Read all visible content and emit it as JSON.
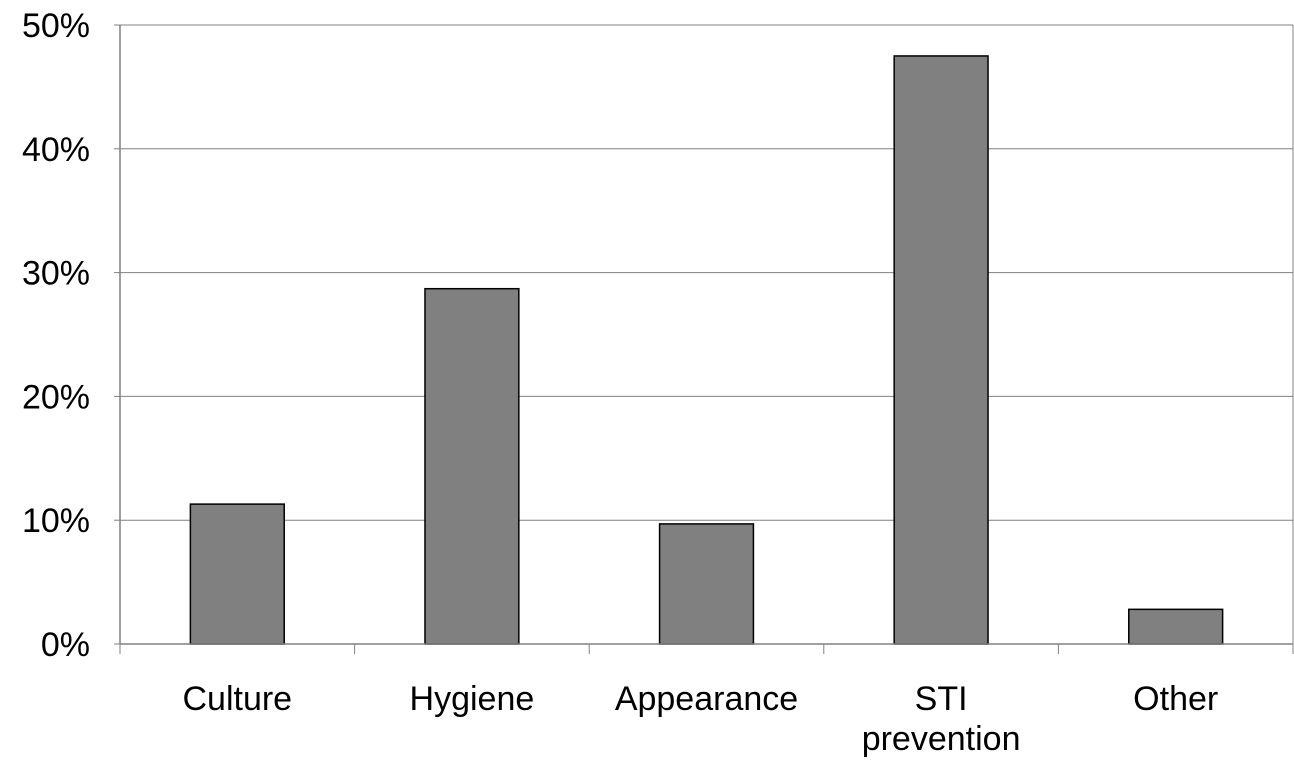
{
  "chart_data": {
    "type": "bar",
    "title": "",
    "xlabel": "",
    "ylabel": "",
    "categories": [
      "Culture",
      "Hygiene",
      "Appearance",
      "STI prevention",
      "Other"
    ],
    "category_lines": [
      [
        "Culture"
      ],
      [
        "Hygiene"
      ],
      [
        "Appearance"
      ],
      [
        "STI",
        "prevention"
      ],
      [
        "Other"
      ]
    ],
    "values": [
      11.3,
      28.7,
      9.7,
      47.5,
      2.8
    ],
    "ylim": [
      0,
      50
    ],
    "yticks": [
      0,
      10,
      20,
      30,
      40,
      50
    ],
    "ytick_labels": [
      "0%",
      "10%",
      "20%",
      "30%",
      "40%",
      "50%"
    ],
    "grid": true,
    "legend": "none",
    "colors": {
      "bar_fill": "#808080",
      "bar_stroke": "#000000",
      "grid": "#808080",
      "axis": "#808080",
      "background": "#ffffff"
    }
  }
}
